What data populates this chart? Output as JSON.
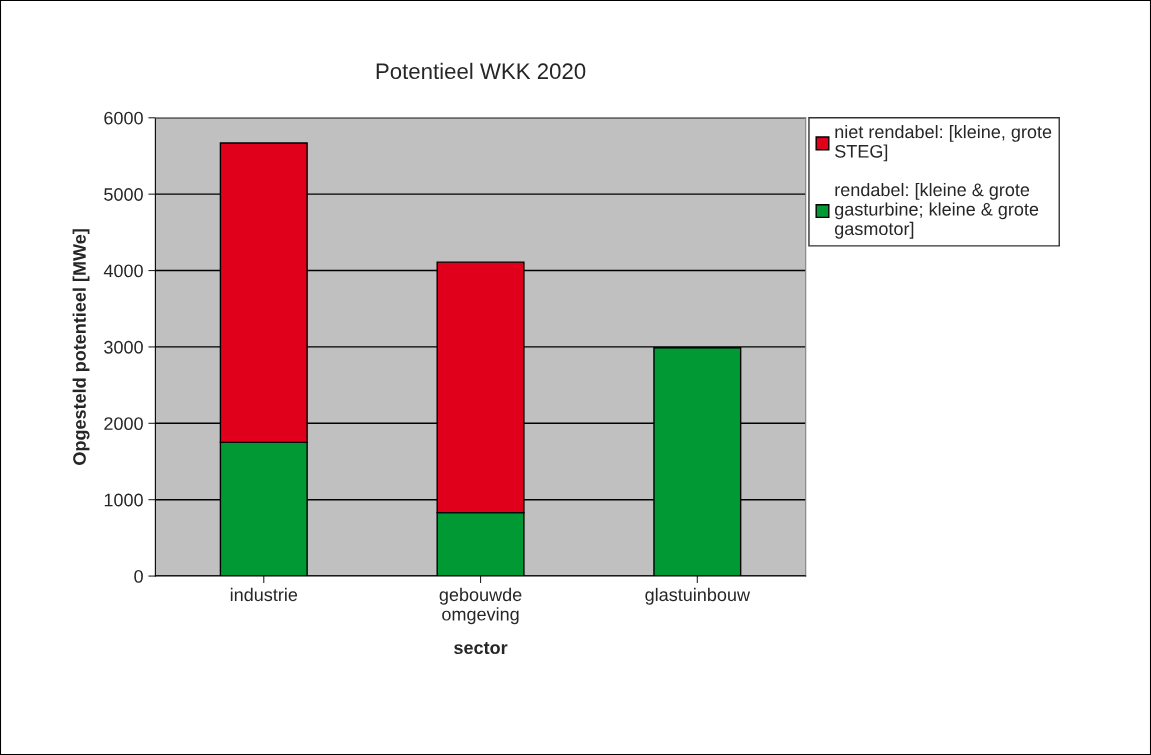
{
  "chart_data": {
    "type": "bar",
    "title": "Potentieel WKK 2020",
    "xlabel": "sector",
    "ylabel": "Opgesteld potentieel [MWe]",
    "categories": [
      "industrie",
      "gebouwde\nomgeving",
      "glastuinbouw"
    ],
    "stacked": true,
    "series": [
      {
        "name": "rendabel: [kleine & grote\ngasturbine; kleine & grote\ngasmotor]",
        "color": "#009933",
        "values": [
          1750,
          830,
          2990
        ]
      },
      {
        "name": "niet rendabel: [kleine, grote\nSTEG]",
        "color": "#e0001b",
        "values": [
          3920,
          3280,
          null
        ]
      }
    ],
    "ylim": [
      0,
      6000
    ],
    "yticks": [
      0,
      1000,
      2000,
      3000,
      4000,
      5000,
      6000
    ],
    "grid": "y",
    "legend": "right"
  }
}
